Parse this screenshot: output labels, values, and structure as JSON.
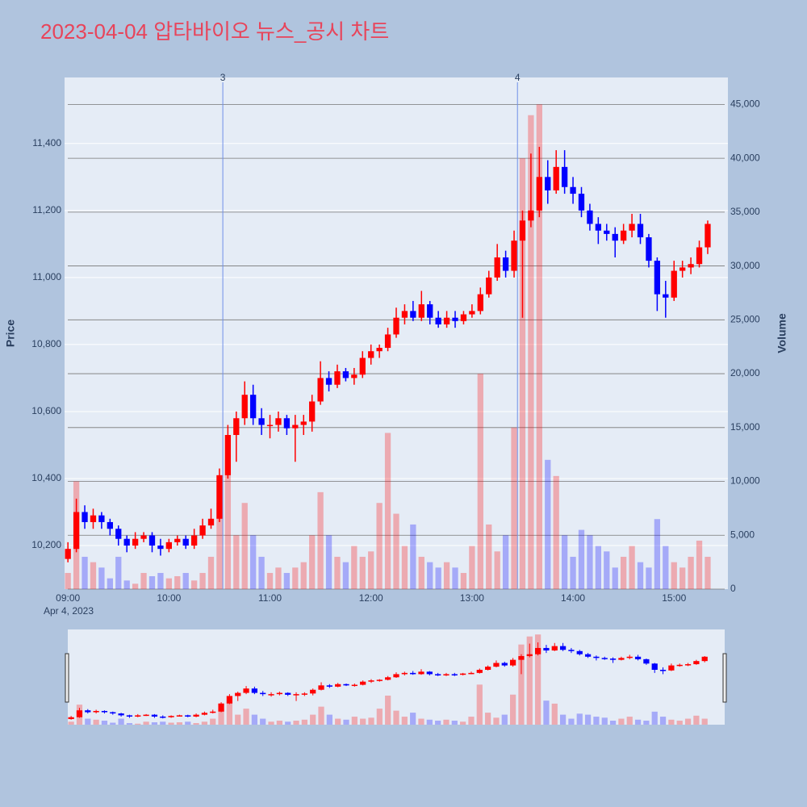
{
  "chart_data": {
    "type": "candlestick",
    "title": "2023-04-04 압타바이오 뉴스_공시 차트",
    "y_label": "Price",
    "y2_label": "Volume",
    "x_date_label": "Apr 4, 2023",
    "increasing_color": "#ff0000",
    "decreasing_color": "#0000ff",
    "x": [
      "09:00",
      "09:05",
      "09:10",
      "09:15",
      "09:20",
      "09:25",
      "09:30",
      "09:35",
      "09:40",
      "09:45",
      "09:50",
      "09:55",
      "10:00",
      "10:05",
      "10:10",
      "10:15",
      "10:20",
      "10:25",
      "10:30",
      "10:35",
      "10:40",
      "10:45",
      "10:50",
      "10:55",
      "11:00",
      "11:05",
      "11:10",
      "11:15",
      "11:20",
      "11:25",
      "11:30",
      "11:35",
      "11:40",
      "11:45",
      "11:50",
      "11:55",
      "12:00",
      "12:05",
      "12:10",
      "12:15",
      "12:20",
      "12:25",
      "12:30",
      "12:35",
      "12:40",
      "12:45",
      "12:50",
      "12:55",
      "13:00",
      "13:05",
      "13:10",
      "13:15",
      "13:20",
      "13:25",
      "13:30",
      "13:35",
      "13:40",
      "13:45",
      "13:50",
      "13:55",
      "14:00",
      "14:05",
      "14:10",
      "14:15",
      "14:20",
      "14:25",
      "14:30",
      "14:35",
      "14:40",
      "14:45",
      "14:50",
      "14:55",
      "15:00",
      "15:05",
      "15:10",
      "15:15",
      "15:20"
    ],
    "open": [
      10160,
      10190,
      10300,
      10270,
      10290,
      10270,
      10250,
      10220,
      10200,
      10220,
      10230,
      10200,
      10190,
      10210,
      10220,
      10200,
      10230,
      10260,
      10280,
      10410,
      10530,
      10580,
      10650,
      10580,
      10560,
      10560,
      10580,
      10550,
      10560,
      10570,
      10630,
      10700,
      10680,
      10720,
      10700,
      10710,
      10760,
      10780,
      10790,
      10830,
      10880,
      10900,
      10880,
      10920,
      10880,
      10860,
      10880,
      10870,
      10890,
      10900,
      10950,
      11000,
      11060,
      11020,
      11110,
      11170,
      11200,
      11300,
      11260,
      11330,
      11270,
      11250,
      11200,
      11160,
      11140,
      11130,
      11110,
      11140,
      11160,
      11120,
      11050,
      10950,
      10940,
      11020,
      11030,
      11040,
      11090
    ],
    "high": [
      10210,
      10340,
      10320,
      10310,
      10300,
      10280,
      10260,
      10230,
      10240,
      10240,
      10240,
      10220,
      10220,
      10230,
      10230,
      10250,
      10280,
      10310,
      10430,
      10560,
      10600,
      10690,
      10680,
      10610,
      10590,
      10600,
      10590,
      10590,
      10590,
      10650,
      10750,
      10720,
      10740,
      10730,
      10730,
      10780,
      10800,
      10800,
      10850,
      10910,
      10920,
      10930,
      10960,
      10930,
      10900,
      10900,
      10900,
      10900,
      10920,
      10970,
      11020,
      11100,
      11080,
      11140,
      11200,
      11370,
      11390,
      11350,
      11380,
      11380,
      11300,
      11270,
      11220,
      11180,
      11160,
      11150,
      11160,
      11190,
      11190,
      11130,
      11060,
      10990,
      11050,
      11050,
      11060,
      11110,
      11170
    ],
    "low": [
      10150,
      10180,
      10250,
      10250,
      10250,
      10230,
      10200,
      10180,
      10190,
      10210,
      10180,
      10170,
      10180,
      10200,
      10190,
      10190,
      10220,
      10250,
      10270,
      10400,
      10450,
      10560,
      10560,
      10530,
      10520,
      10540,
      10530,
      10450,
      10530,
      10540,
      10620,
      10660,
      10670,
      10690,
      10680,
      10700,
      10740,
      10760,
      10780,
      10820,
      10860,
      10870,
      10870,
      10860,
      10850,
      10850,
      10850,
      10860,
      10880,
      10890,
      10940,
      10990,
      11000,
      11000,
      10880,
      11150,
      11180,
      11220,
      11250,
      11250,
      11220,
      11180,
      11140,
      11100,
      11110,
      11060,
      11100,
      11120,
      11100,
      11030,
      10900,
      10880,
      10930,
      11000,
      11010,
      11030,
      11070
    ],
    "close": [
      10190,
      10300,
      10270,
      10290,
      10270,
      10250,
      10220,
      10200,
      10220,
      10230,
      10200,
      10190,
      10210,
      10220,
      10200,
      10230,
      10260,
      10280,
      10410,
      10530,
      10580,
      10650,
      10580,
      10560,
      10560,
      10580,
      10550,
      10560,
      10570,
      10630,
      10700,
      10680,
      10720,
      10700,
      10710,
      10760,
      10780,
      10790,
      10830,
      10880,
      10900,
      10880,
      10920,
      10880,
      10860,
      10880,
      10870,
      10890,
      10900,
      10950,
      11000,
      11060,
      11020,
      11110,
      11170,
      11200,
      11300,
      11260,
      11330,
      11270,
      11250,
      11200,
      11160,
      11140,
      11130,
      11110,
      11140,
      11160,
      11120,
      11050,
      10950,
      10940,
      11020,
      11030,
      11040,
      11090,
      11160
    ],
    "volume": [
      1500,
      10000,
      3000,
      2500,
      2000,
      1000,
      3000,
      800,
      500,
      1500,
      1200,
      1500,
      1000,
      1200,
      1500,
      800,
      1500,
      3000,
      8000,
      12000,
      5000,
      8000,
      5000,
      3000,
      1500,
      2000,
      1500,
      2000,
      2500,
      5000,
      9000,
      5000,
      3000,
      2500,
      4000,
      3000,
      3500,
      8000,
      14500,
      7000,
      4000,
      6000,
      3000,
      2500,
      2000,
      2500,
      2000,
      1500,
      4000,
      20000,
      6000,
      3500,
      5000,
      15000,
      40000,
      44000,
      45000,
      12000,
      10500,
      5000,
      3000,
      5500,
      5000,
      4000,
      3500,
      2000,
      3000,
      4000,
      2500,
      2000,
      6500,
      4000,
      2500,
      2000,
      3000,
      4500,
      3000
    ],
    "xlim": [
      "08:58",
      "15:32"
    ],
    "xticks": [
      "09:00",
      "10:00",
      "11:00",
      "12:00",
      "13:00",
      "14:00",
      "15:00"
    ],
    "ylim": [
      10070,
      11597
    ],
    "yticks": [
      {
        "value": 10200,
        "label": "10,200"
      },
      {
        "value": 10400,
        "label": "10,400"
      },
      {
        "value": 10600,
        "label": "10,600"
      },
      {
        "value": 10800,
        "label": "10,800"
      },
      {
        "value": 11000,
        "label": "11,000"
      },
      {
        "value": 11200,
        "label": "11,200"
      },
      {
        "value": 11400,
        "label": "11,400"
      }
    ],
    "y2lim": [
      0,
      47500
    ],
    "y2ticks": [
      0,
      {
        "value": 5000,
        "label": "5,000"
      },
      {
        "value": 10000,
        "label": "10,000"
      },
      {
        "value": 15000,
        "label": "15,000"
      },
      {
        "value": 20000,
        "label": "20,000"
      },
      {
        "value": 25000,
        "label": "25,000"
      },
      {
        "value": 30000,
        "label": "30,000"
      },
      {
        "value": 35000,
        "label": "35,000"
      },
      {
        "value": 40000,
        "label": "40,000"
      },
      {
        "value": 45000,
        "label": "45,000"
      }
    ],
    "annotations": [
      {
        "text": "3",
        "x": "10:32"
      },
      {
        "text": "4",
        "x": "13:27"
      }
    ]
  }
}
